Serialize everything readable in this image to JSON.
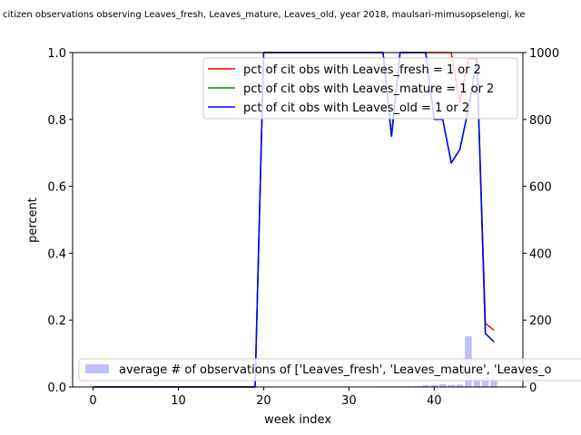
{
  "chart_data": {
    "type": "line",
    "title": "citizen observations observing Leaves_fresh, Leaves_mature, Leaves_old, year 2018, maulsari-mimusopselengi, ke",
    "xlabel": "week index",
    "ylabel": "percent",
    "xlim": [
      -2.4,
      50.4
    ],
    "ylim": [
      0,
      1.0
    ],
    "y2lim": [
      0,
      1000
    ],
    "x_ticks": [
      0,
      10,
      20,
      30,
      40
    ],
    "y_ticks": [
      0.0,
      0.2,
      0.4,
      0.6,
      0.8,
      1.0
    ],
    "y2_ticks": [
      0,
      200,
      400,
      600,
      800,
      1000
    ],
    "legend_top_position": "upper right",
    "legend_bottom_position": "lower right",
    "series": [
      {
        "name": "pct of cit obs with Leaves_fresh = 1 or 2",
        "color": "#ff0000",
        "x": [
          0,
          18,
          19,
          20,
          34,
          35,
          36,
          39,
          40,
          41,
          42,
          43,
          44,
          45,
          46,
          47
        ],
        "y": [
          0,
          0,
          0,
          1.0,
          1.0,
          0.75,
          1.0,
          1.0,
          1.0,
          1.0,
          1.0,
          0.85,
          0.98,
          0.98,
          0.19,
          0.17
        ]
      },
      {
        "name": "pct of cit obs with Leaves_mature = 1 or 2",
        "color": "#008000",
        "x": [
          0,
          18,
          19,
          20,
          34,
          35,
          36,
          39,
          40,
          41,
          42,
          43,
          44,
          45,
          46,
          47
        ],
        "y": [
          0,
          0,
          0,
          1.0,
          1.0,
          0.75,
          1.0,
          1.0,
          0.8,
          0.8,
          0.67,
          0.71,
          0.83,
          0.98,
          0.16,
          0.135
        ]
      },
      {
        "name": "pct of cit obs with Leaves_old = 1 or 2",
        "color": "#0000ff",
        "x": [
          0,
          18,
          19,
          20,
          34,
          35,
          36,
          39,
          40,
          41,
          42,
          43,
          44,
          45,
          46,
          47
        ],
        "y": [
          0,
          0,
          0,
          1.0,
          1.0,
          0.75,
          1.0,
          1.0,
          0.8,
          0.8,
          0.67,
          0.71,
          0.83,
          0.98,
          0.16,
          0.135
        ]
      }
    ],
    "bars": {
      "name": "average # of observations of ['Leaves_fresh', 'Leaves_mature', 'Leaves_o",
      "color": "#bfbfff",
      "axis": "right",
      "x": [
        19,
        25,
        28,
        31,
        34,
        35,
        36,
        37,
        38,
        39,
        40,
        41,
        42,
        43,
        44,
        45,
        46,
        47
      ],
      "values": [
        1,
        1,
        1,
        1,
        2,
        2,
        2,
        2,
        3,
        5,
        6,
        8,
        6,
        7,
        152,
        23,
        30,
        20
      ]
    }
  }
}
